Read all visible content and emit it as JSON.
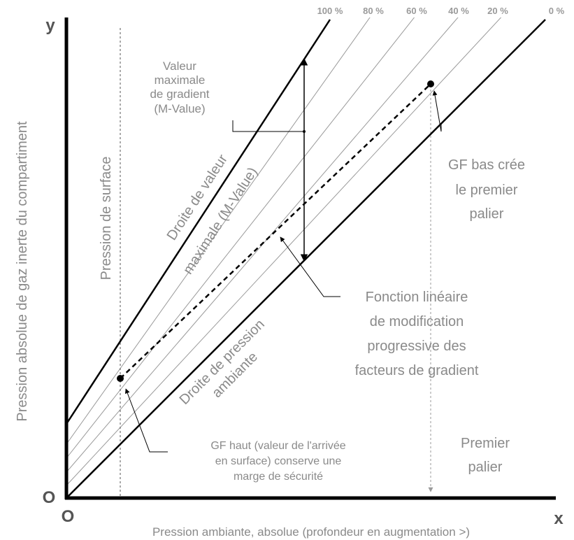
{
  "axes": {
    "y_letter": "y",
    "x_letter": "x",
    "origin_y": "O",
    "origin_x": "O",
    "y_label": "Pression absolue de gaz inerte du compartiment",
    "x_label": "Pression ambiante, absolue (profondeur en augmentation >)"
  },
  "percent_labels": [
    "100 %",
    "80 %",
    "60 %",
    "40 %",
    "20 %",
    "0 %"
  ],
  "labels": {
    "surface_pressure": "Pression de surface",
    "m_value_line": [
      "Droite de valeur",
      "maximale (M-Value)"
    ],
    "ambient_line": [
      "Droite de pression",
      "ambiante"
    ],
    "max_gradient": [
      "Valeur",
      "maximale",
      "de gradient",
      "(M-Value)"
    ],
    "gf_low": [
      "GF bas crée",
      "le premier",
      "palier"
    ],
    "linear_function": [
      "Fonction linéaire",
      "de modification",
      "progressive des",
      "facteurs de gradient"
    ],
    "gf_high": [
      "GF haut (valeur de l'arrivée",
      "en surface) conserve une",
      "marge de sécurité"
    ],
    "first_stop": [
      "Premier",
      "palier"
    ]
  },
  "colors": {
    "axis": "#000000",
    "text": "#8a8a8a",
    "thin_lines": "#9a9a9a"
  }
}
